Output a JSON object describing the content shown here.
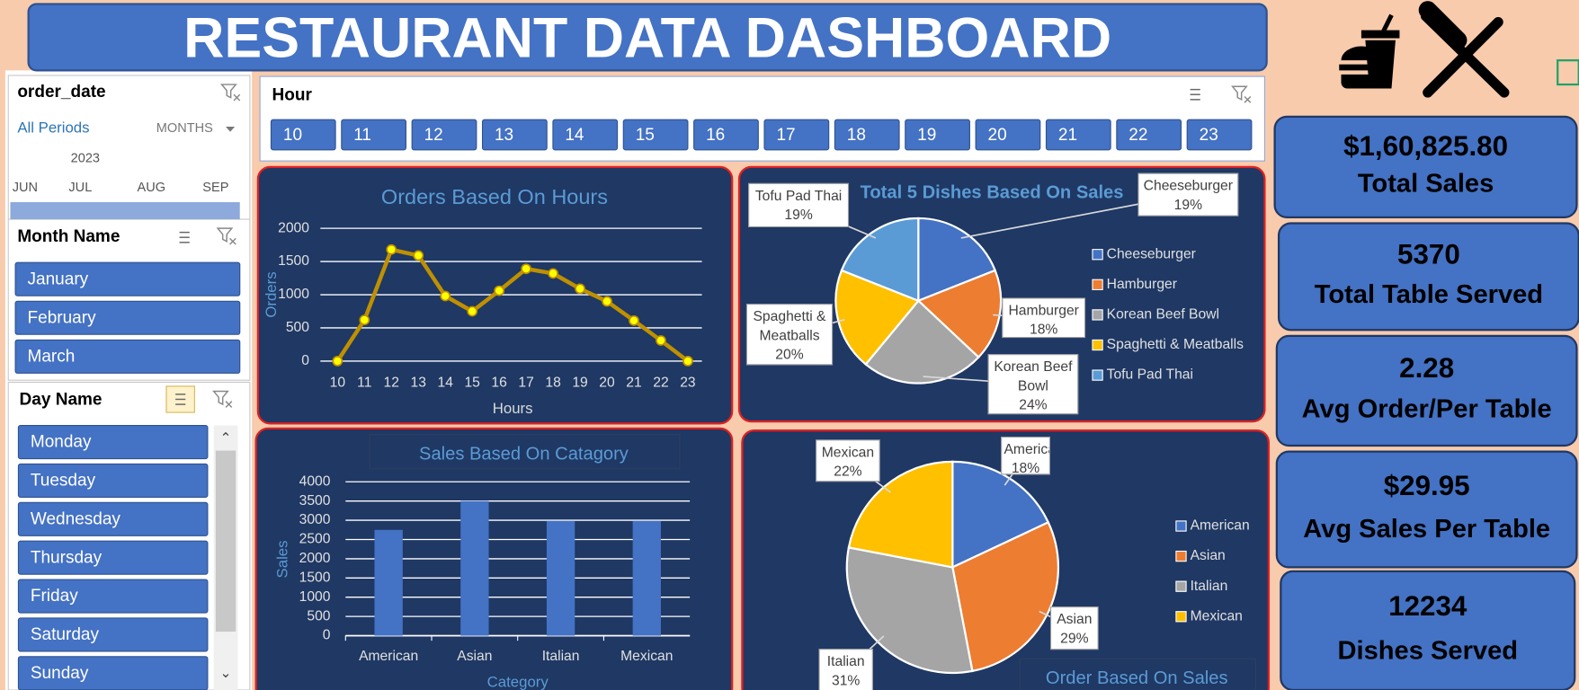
{
  "header": {
    "title": "RESTAURANT  DATA  DASHBOARD"
  },
  "slicers": {
    "order_date": {
      "title": "order_date",
      "period": "All Periods",
      "unit": "MONTHS",
      "year": "2023",
      "months": [
        "JUN",
        "JUL",
        "AUG",
        "SEP"
      ]
    },
    "hour": {
      "title": "Hour",
      "items": [
        10,
        11,
        12,
        13,
        14,
        15,
        16,
        17,
        18,
        19,
        20,
        21,
        22,
        23
      ]
    },
    "month": {
      "title": "Month Name",
      "items": [
        "January",
        "February",
        "March"
      ]
    },
    "day": {
      "title": "Day Name",
      "items": [
        "Monday",
        "Tuesday",
        "Wednesday",
        "Thursday",
        "Friday",
        "Saturday",
        "Sunday"
      ]
    }
  },
  "kpis": [
    {
      "value": "$1,60,825.80",
      "label": "Total Sales"
    },
    {
      "value": "5370",
      "label": "Total Table Served"
    },
    {
      "value": "2.28",
      "label": "Avg Order/Per Table"
    },
    {
      "value": "$29.95",
      "label": "Avg Sales Per Table"
    },
    {
      "value": "12234",
      "label": "Dishes Served"
    }
  ],
  "chart_data": [
    {
      "type": "line",
      "title": "Orders Based On Hours",
      "categories": [
        10,
        11,
        12,
        13,
        14,
        15,
        16,
        17,
        18,
        19,
        20,
        21,
        22,
        23
      ],
      "values": [
        0,
        620,
        1680,
        1590,
        980,
        750,
        1060,
        1390,
        1320,
        1090,
        900,
        610,
        310,
        0
      ],
      "color": "#bf9000",
      "marker_color": "#ffff00",
      "x_label": "Hours",
      "y_label": "Orders",
      "ylim": [
        0,
        2000
      ],
      "yticks": [
        0,
        500,
        1000,
        1500,
        2000
      ],
      "grid": true
    },
    {
      "type": "pie",
      "title": "Total 5 Dishes Based On Sales",
      "categories": [
        "Cheeseburger",
        "Hamburger",
        "Korean Beef Bowl",
        "Spaghetti & Meatballs",
        "Tofu Pad Thai"
      ],
      "values": [
        19,
        18,
        24,
        20,
        19
      ],
      "value_labels": [
        "19%",
        "18%",
        "24%",
        "20%",
        "19%"
      ],
      "colors": [
        "#4472c4",
        "#ed7d31",
        "#a5a5a5",
        "#ffc000",
        "#5b9bd5"
      ],
      "legend": "right"
    },
    {
      "type": "bar",
      "title": "Sales Based On Catagory",
      "categories": [
        "American",
        "Asian",
        "Italian",
        "Mexican"
      ],
      "values": [
        2750,
        3500,
        2980,
        2980
      ],
      "color": "#4472c4",
      "x_label": "Category",
      "y_label": "Sales",
      "ylim": [
        0,
        4000
      ],
      "yticks": [
        0,
        500,
        1000,
        1500,
        2000,
        2500,
        3000,
        3500,
        4000
      ],
      "grid": true
    },
    {
      "type": "pie",
      "title": "Order Based On Sales",
      "categories": [
        "American",
        "Asian",
        "Italian",
        "Mexican"
      ],
      "values": [
        18,
        29,
        31,
        22
      ],
      "value_labels": [
        "18%",
        "29%",
        "31%",
        "22%"
      ],
      "colors": [
        "#4472c4",
        "#ed7d31",
        "#a5a5a5",
        "#ffc000"
      ],
      "legend": "right"
    }
  ]
}
